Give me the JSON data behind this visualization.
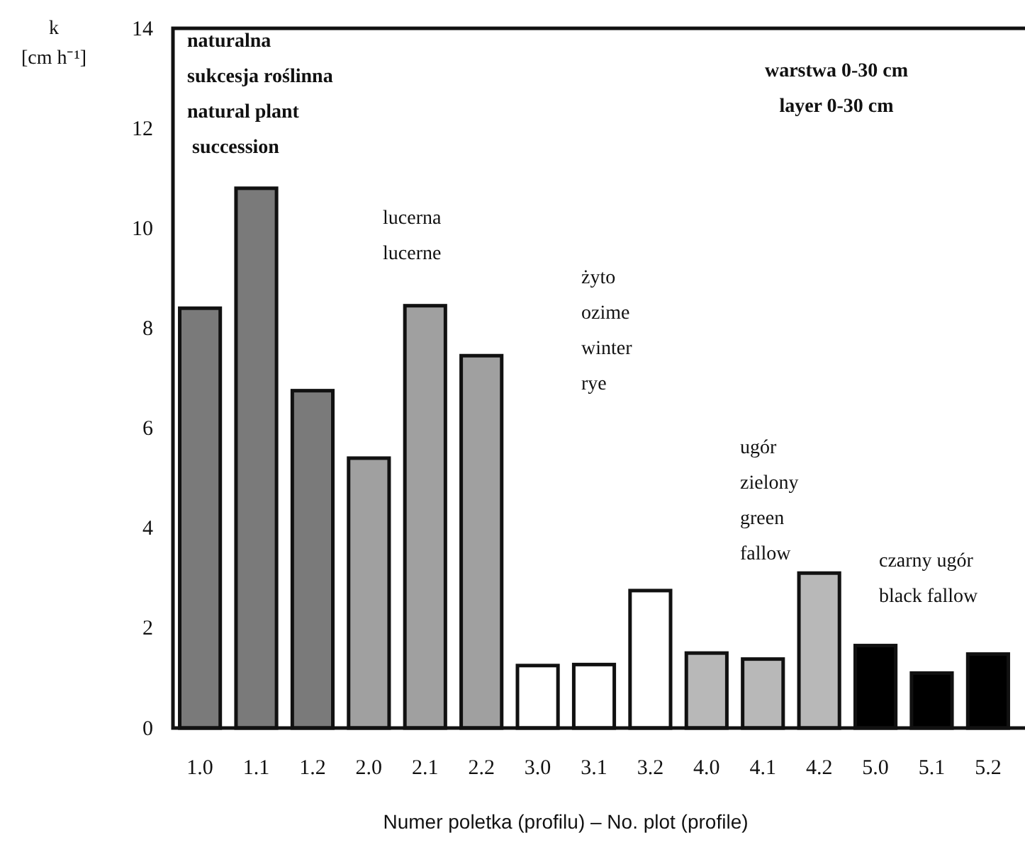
{
  "chart_data": {
    "type": "bar",
    "categories": [
      "1.0",
      "1.1",
      "1.2",
      "2.0",
      "2.1",
      "2.2",
      "3.0",
      "3.1",
      "3.2",
      "4.0",
      "4.1",
      "4.2",
      "5.0",
      "5.1",
      "5.2"
    ],
    "values": [
      8.4,
      10.8,
      6.75,
      5.4,
      8.45,
      7.45,
      1.25,
      1.27,
      2.75,
      1.5,
      1.38,
      3.1,
      1.65,
      1.1,
      1.48
    ],
    "colors": [
      "#7a7a7a",
      "#7a7a7a",
      "#7a7a7a",
      "#a0a0a0",
      "#a0a0a0",
      "#a0a0a0",
      "#ffffff",
      "#ffffff",
      "#ffffff",
      "#b8b8b8",
      "#b8b8b8",
      "#b8b8b8",
      "#000000",
      "#000000",
      "#000000"
    ],
    "ylim": [
      0,
      14
    ],
    "yticks": [
      0,
      2,
      4,
      6,
      8,
      10,
      12,
      14
    ],
    "ylabel": "k\n[cm h⁻¹]",
    "xlabel": "Numer poletka (profilu) – No. plot (profile)",
    "grid": false,
    "annotations": [
      "naturalna\nsukcesja roślinna\nnatural plant\n succession",
      "lucerna\nlucerne",
      "żyto\nozime\nwinter\nrye",
      "ugór\nzielony\ngreen\nfallow",
      "czarny ugór\nblack fallow",
      "warstwa 0-30 cm\nlayer 0-30 cm"
    ]
  }
}
